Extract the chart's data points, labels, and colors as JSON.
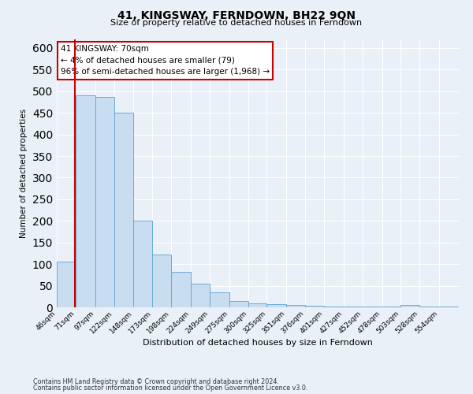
{
  "title": "41, KINGSWAY, FERNDOWN, BH22 9QN",
  "subtitle": "Size of property relative to detached houses in Ferndown",
  "xlabel": "Distribution of detached houses by size in Ferndown",
  "ylabel": "Number of detached properties",
  "bin_labels": [
    "46sqm",
    "71sqm",
    "97sqm",
    "122sqm",
    "148sqm",
    "173sqm",
    "198sqm",
    "224sqm",
    "249sqm",
    "275sqm",
    "300sqm",
    "325sqm",
    "351sqm",
    "376sqm",
    "401sqm",
    "427sqm",
    "452sqm",
    "478sqm",
    "503sqm",
    "528sqm",
    "554sqm"
  ],
  "bar_values": [
    105,
    490,
    487,
    450,
    200,
    122,
    82,
    55,
    35,
    15,
    10,
    8,
    5,
    3,
    2,
    1,
    1,
    1,
    5,
    1,
    1
  ],
  "bar_color": "#c9ddf0",
  "bar_edge_color": "#6aabd2",
  "property_line_x": 70,
  "annotation_title": "41 KINGSWAY: 70sqm",
  "annotation_line1": "← 4% of detached houses are smaller (79)",
  "annotation_line2": "96% of semi-detached houses are larger (1,968) →",
  "annotation_box_color": "#ffffff",
  "annotation_box_edge": "#cc0000",
  "vline_color": "#cc0000",
  "ylim": [
    0,
    620
  ],
  "yticks": [
    0,
    50,
    100,
    150,
    200,
    250,
    300,
    350,
    400,
    450,
    500,
    550,
    600
  ],
  "footnote1": "Contains HM Land Registry data © Crown copyright and database right 2024.",
  "footnote2": "Contains public sector information licensed under the Open Government Licence v3.0.",
  "bg_color": "#eaf0f8",
  "plot_bg_color": "#eaf0f8"
}
